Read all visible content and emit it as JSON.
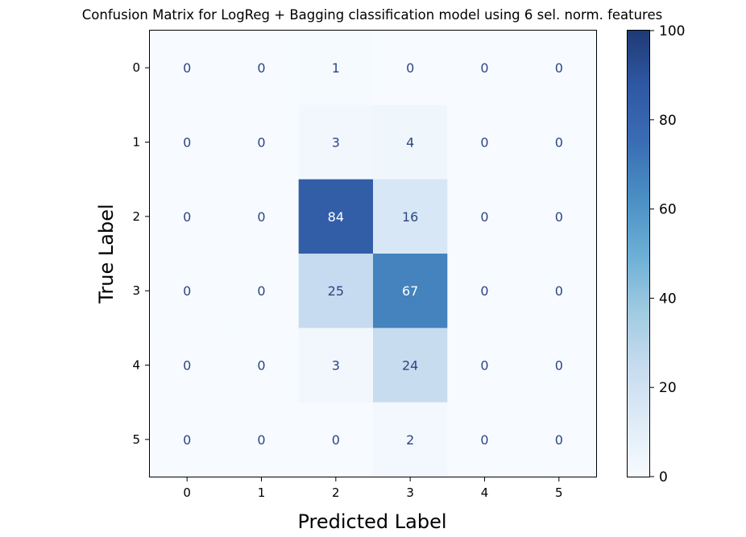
{
  "chart_data": {
    "type": "heatmap",
    "title": "Confusion Matrix for LogReg + Bagging classification model using 6 sel. norm. features",
    "xlabel": "Predicted Label",
    "ylabel": "True Label",
    "x_categories": [
      "0",
      "1",
      "2",
      "3",
      "4",
      "5"
    ],
    "y_categories": [
      "0",
      "1",
      "2",
      "3",
      "4",
      "5"
    ],
    "values": [
      [
        0,
        0,
        1,
        0,
        0,
        0
      ],
      [
        0,
        0,
        3,
        4,
        0,
        0
      ],
      [
        0,
        0,
        84,
        16,
        0,
        0
      ],
      [
        0,
        0,
        25,
        67,
        0,
        0
      ],
      [
        0,
        0,
        3,
        24,
        0,
        0
      ],
      [
        0,
        0,
        0,
        2,
        0,
        0
      ]
    ],
    "colorbar": {
      "range": [
        0,
        100
      ],
      "ticks": [
        "0",
        "20",
        "40",
        "60",
        "80",
        "100"
      ],
      "colormap": "Blues"
    },
    "grid": false
  }
}
